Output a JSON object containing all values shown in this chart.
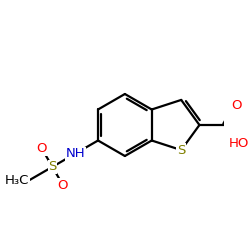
{
  "background": "#ffffff",
  "bond_color": "#000000",
  "bond_width": 1.6,
  "S_thio_color": "#808000",
  "S_sulfonyl_color": "#808000",
  "N_color": "#0000cd",
  "O_color": "#ff0000",
  "font_size": 9.5,
  "fig_size": [
    2.5,
    2.5
  ],
  "dpi": 100,
  "xlim": [
    -3.8,
    3.2
  ],
  "ylim": [
    -2.2,
    2.2
  ]
}
